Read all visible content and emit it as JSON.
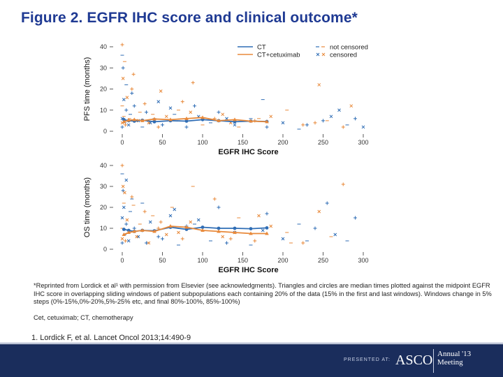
{
  "slide": {
    "title": "Figure 2. EGFR IHC score and clinical outcome*",
    "footnote1": "*Reprinted from Lordick et al¹ with permission from Elsevier (see acknowledgments). Triangles and circles are median times plotted against the midpoint EGFR IHC score in overlapping sliding windows of patient subpopulations each containing 20% of the data (15% in the first and last windows). Windows change in 5% steps (0%-15%,0%-20%,5%-25% etc, and final 80%-100%, 85%-100%)",
    "footnote2": "Cet, cetuximab; CT, chemotherapy",
    "reference": "1. Lordick F, et al. Lancet Oncol 2013;14:490-9"
  },
  "footer": {
    "presented": "PRESENTED AT:",
    "logo": "ASCO",
    "meeting_line1": "Annual '13",
    "meeting_line2": "Meeting"
  },
  "colors": {
    "ct": "#2f6db5",
    "cet": "#e8893a",
    "title": "#1f3a93",
    "footer": "#1a2d5c"
  },
  "legend": {
    "ct": "CT",
    "cet": "CT+cetuximab",
    "not_censored": "not censored",
    "censored": "censored"
  },
  "chart_data": [
    {
      "type": "scatter",
      "ylabel": "PFS time (months)",
      "xlabel": "EGFR IHC Score",
      "xlim": [
        0,
        300
      ],
      "ylim": [
        0,
        40
      ],
      "xticks": [
        0,
        50,
        100,
        150,
        200,
        250,
        300
      ],
      "yticks": [
        0,
        10,
        20,
        30,
        40
      ],
      "legend_position": "top-right",
      "series": [
        {
          "name": "CT",
          "kind": "median-line",
          "x": [
            2,
            8,
            15,
            25,
            40,
            60,
            80,
            100,
            120,
            140,
            160,
            180
          ],
          "y": [
            5.5,
            5.0,
            4.8,
            5.2,
            4.5,
            5.0,
            4.8,
            5.5,
            5.0,
            4.5,
            4.8,
            4.6
          ]
        },
        {
          "name": "CT+cetuximab",
          "kind": "median-line",
          "x": [
            2,
            8,
            15,
            25,
            40,
            60,
            80,
            100,
            120,
            140,
            160,
            180
          ],
          "y": [
            4.5,
            5.2,
            5.5,
            5.0,
            5.8,
            5.5,
            6.0,
            6.5,
            5.0,
            5.5,
            4.8,
            4.5
          ]
        },
        {
          "name": "CT",
          "kind": "patients",
          "x": [
            0,
            0,
            0,
            1,
            2,
            3,
            5,
            8,
            10,
            15,
            20,
            25,
            30,
            35,
            40,
            50,
            60,
            70,
            80,
            95,
            110,
            120,
            140,
            160,
            180,
            200,
            220,
            250,
            270,
            280,
            290,
            300,
            5,
            12,
            45,
            65,
            90,
            130,
            175,
            230,
            260
          ],
          "y": [
            2,
            6,
            36,
            30,
            15,
            4,
            10,
            3,
            8,
            12,
            5,
            2,
            9,
            4,
            6,
            3,
            11,
            5,
            2,
            7,
            4,
            9,
            3,
            6,
            2,
            4,
            1,
            5,
            10,
            3,
            6,
            2,
            22,
            18,
            14,
            8,
            12,
            6,
            15,
            3,
            7
          ]
        },
        {
          "name": "CT+cetuximab",
          "kind": "patients",
          "x": [
            0,
            0,
            0,
            1,
            2,
            4,
            6,
            9,
            12,
            18,
            22,
            28,
            33,
            38,
            45,
            55,
            62,
            75,
            85,
            100,
            115,
            125,
            145,
            165,
            185,
            205,
            225,
            245,
            255,
            275,
            285,
            3,
            14,
            48,
            70,
            88,
            135,
            170,
            240
          ],
          "y": [
            4,
            12,
            41,
            25,
            7,
            3,
            16,
            6,
            20,
            5,
            9,
            13,
            4,
            8,
            2,
            7,
            5,
            14,
            9,
            3,
            6,
            8,
            2,
            5,
            7,
            10,
            3,
            22,
            5,
            2,
            12,
            33,
            27,
            19,
            10,
            23,
            4,
            6,
            4
          ]
        }
      ]
    },
    {
      "type": "scatter",
      "ylabel": "OS time (months)",
      "xlabel": "EGFR IHC Score",
      "xlim": [
        0,
        300
      ],
      "ylim": [
        0,
        40
      ],
      "xticks": [
        0,
        50,
        100,
        150,
        200,
        250,
        300
      ],
      "yticks": [
        0,
        10,
        20,
        30,
        40
      ],
      "series": [
        {
          "name": "CT",
          "kind": "median-line",
          "x": [
            2,
            8,
            15,
            25,
            40,
            60,
            80,
            100,
            120,
            140,
            160,
            180
          ],
          "y": [
            9.5,
            9.0,
            8.5,
            9.0,
            8.8,
            10.5,
            9.5,
            10.5,
            10.0,
            10.0,
            9.8,
            10.2
          ]
        },
        {
          "name": "CT+cetuximab",
          "kind": "median-line",
          "x": [
            2,
            8,
            15,
            25,
            40,
            60,
            80,
            100,
            120,
            140,
            160,
            180
          ],
          "y": [
            7.0,
            8.0,
            8.5,
            9.0,
            8.5,
            11.0,
            10.5,
            9.0,
            8.5,
            8.0,
            7.5,
            7.5
          ]
        },
        {
          "name": "CT",
          "kind": "patients",
          "x": [
            0,
            0,
            0,
            1,
            2,
            3,
            5,
            8,
            10,
            15,
            20,
            25,
            30,
            35,
            40,
            50,
            60,
            70,
            80,
            95,
            110,
            120,
            140,
            160,
            180,
            200,
            220,
            240,
            265,
            280,
            290,
            5,
            12,
            45,
            65,
            90,
            130,
            175,
            230,
            255
          ],
          "y": [
            3,
            15,
            36,
            28,
            20,
            7,
            12,
            4,
            18,
            10,
            6,
            22,
            3,
            13,
            9,
            5,
            16,
            2,
            11,
            14,
            4,
            20,
            8,
            2,
            17,
            5,
            12,
            10,
            7,
            4,
            15,
            33,
            24,
            6,
            19,
            12,
            3,
            9,
            4,
            22
          ]
        },
        {
          "name": "CT+cetuximab",
          "kind": "patients",
          "x": [
            0,
            0,
            0,
            1,
            2,
            4,
            6,
            9,
            12,
            18,
            22,
            28,
            33,
            38,
            45,
            55,
            62,
            75,
            85,
            100,
            115,
            125,
            145,
            165,
            185,
            205,
            225,
            245,
            260,
            275,
            3,
            14,
            48,
            70,
            88,
            135,
            170,
            210
          ],
          "y": [
            5,
            10,
            40,
            30,
            22,
            4,
            14,
            8,
            25,
            6,
            12,
            18,
            3,
            16,
            10,
            7,
            20,
            5,
            13,
            9,
            24,
            6,
            15,
            4,
            11,
            8,
            3,
            18,
            6,
            31,
            27,
            21,
            13,
            8,
            30,
            5,
            16,
            3
          ]
        }
      ]
    }
  ]
}
